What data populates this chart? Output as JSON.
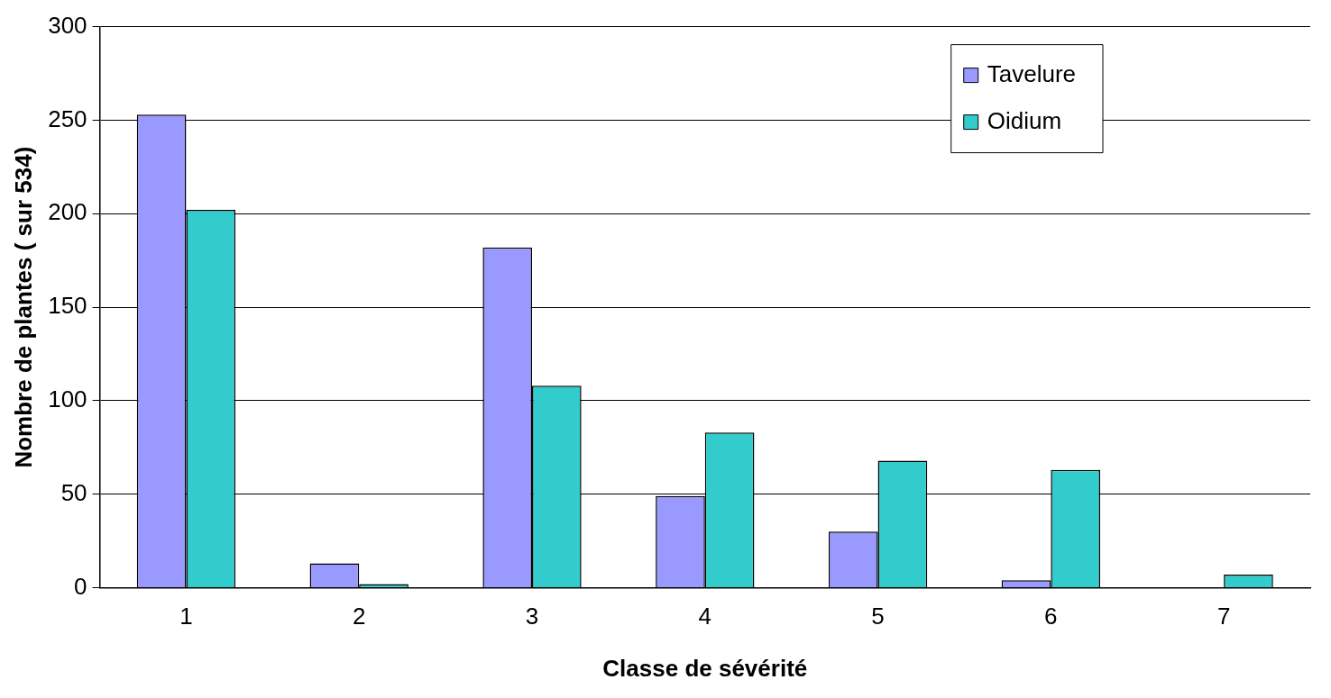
{
  "chart_data": {
    "type": "bar",
    "xlabel": "Classe de sévérité",
    "ylabel": "Nombre de plantes ( sur 534)",
    "categories": [
      "1",
      "2",
      "3",
      "4",
      "5",
      "6",
      "7"
    ],
    "series": [
      {
        "name": "Tavelure",
        "color": "#9999ff",
        "values": [
          253,
          13,
          182,
          49,
          30,
          4,
          0
        ]
      },
      {
        "name": "Oidium",
        "color": "#33cccc",
        "values": [
          202,
          2,
          108,
          83,
          68,
          63,
          7
        ]
      }
    ],
    "ylim": [
      0,
      300
    ],
    "yticks": [
      0,
      50,
      100,
      150,
      200,
      250,
      300
    ],
    "grid": "y",
    "legend": "top right"
  }
}
